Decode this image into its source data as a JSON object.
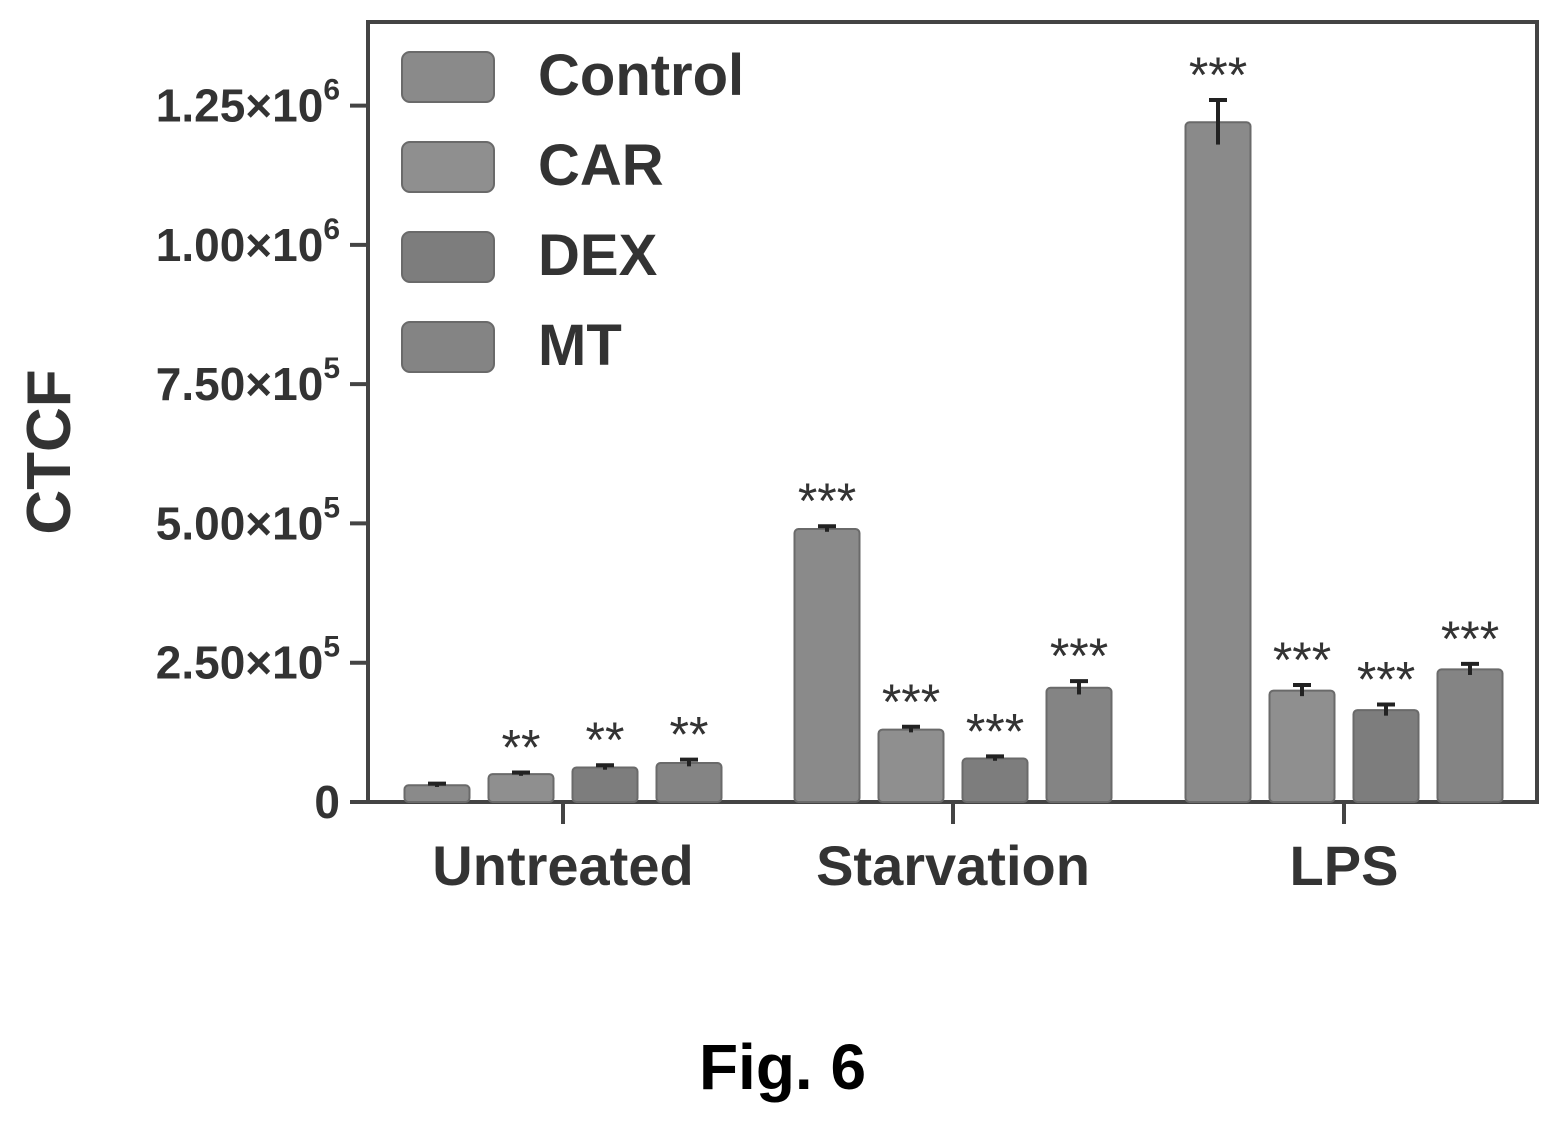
{
  "chart_data": {
    "type": "bar",
    "ylabel": "CTCF",
    "xlabel": "",
    "ylim": [
      0,
      1400000
    ],
    "yticks": [
      {
        "value": 0,
        "label": "0"
      },
      {
        "value": 250000,
        "label": "2.50×10",
        "exp": "5"
      },
      {
        "value": 500000,
        "label": "5.00×10",
        "exp": "5"
      },
      {
        "value": 750000,
        "label": "7.50×10",
        "exp": "5"
      },
      {
        "value": 1000000,
        "label": "1.00×10",
        "exp": "6"
      },
      {
        "value": 1250000,
        "label": "1.25×10",
        "exp": "6"
      }
    ],
    "categories": [
      "Untreated",
      "Starvation",
      "LPS"
    ],
    "legend_position": "top-left",
    "series": [
      {
        "name": "Control",
        "values": [
          30000,
          490000,
          1220000
        ],
        "errors": [
          3000,
          5000,
          40000
        ],
        "sig": [
          "",
          "***",
          "***"
        ]
      },
      {
        "name": "CAR",
        "values": [
          50000,
          130000,
          200000
        ],
        "errors": [
          3000,
          5000,
          10000
        ],
        "sig": [
          "**",
          "***",
          "***"
        ]
      },
      {
        "name": "DEX",
        "values": [
          62000,
          78000,
          165000
        ],
        "errors": [
          4000,
          4000,
          10000
        ],
        "sig": [
          "**",
          "***",
          "***"
        ]
      },
      {
        "name": "MT",
        "values": [
          70000,
          205000,
          238000
        ],
        "errors": [
          6000,
          12000,
          10000
        ],
        "sig": [
          "**",
          "***",
          "***"
        ]
      }
    ]
  },
  "caption": "Fig. 6"
}
